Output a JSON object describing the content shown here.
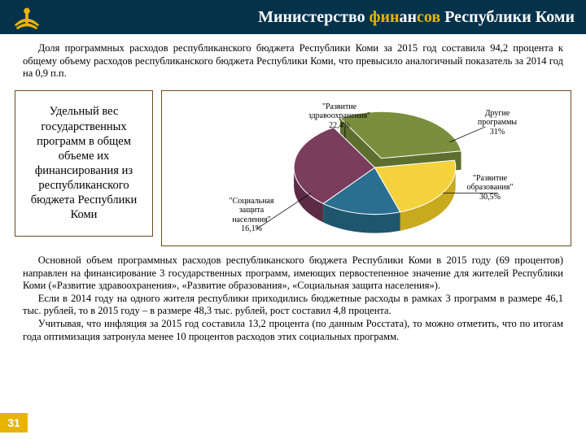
{
  "header": {
    "title_prefix": "Министерство ",
    "title_accent": "фин",
    "title_mid": "ан",
    "title_accent2": "сов",
    "title_suffix": " Республики Коми",
    "bar_bg": "#05324b",
    "logo_fill": "#e8b400"
  },
  "intro": "Доля программных расходов республиканского бюджета Республики Коми за 2015 год составила 94,2 процента к общему объему расходов республиканского бюджета Республики Коми, что превысило аналогичный показатель за 2014 год на 0,9 п.п.",
  "sidebox": "Удельный вес государственных программ в общем объеме их финансирования из республиканского бюджета Республики Коми",
  "chart": {
    "type": "pie-3d",
    "bg": "#ffffff",
    "border": "#6b4a1e",
    "label_fontsize": 10,
    "slices": [
      {
        "label": "\"Социальная защита населения\"",
        "pct": "16,1%",
        "value": 16.1,
        "fill": "#2a6f8f",
        "side": "#1f566e"
      },
      {
        "label": "\"Развитие здравоохранения\"",
        "pct": "22,4%",
        "value": 22.4,
        "fill": "#f3d23c",
        "side": "#c9a91e"
      },
      {
        "label": "Другие программы",
        "pct": "31%",
        "value": 31.0,
        "fill": "#7a8f3e",
        "side": "#5e6e2e"
      },
      {
        "label": "\"Развитие образования\"",
        "pct": "30,5%",
        "value": 30.5,
        "fill": "#7a3d5e",
        "side": "#5c2c46"
      }
    ]
  },
  "outro": {
    "p1": "Основной объем программных расходов республиканского бюджета Республики Коми в 2015 году (69 процентов) направлен на финансирование 3 государственных программ, имеющих первостепенное значение для жителей Республики Коми («Развитие здравоохранения», «Развитие образования», «Социальная защита населения»).",
    "p2": "Если в 2014 году на одного жителя республики приходились бюджетные расходы в рамках 3 программ в размере 46,1 тыс. рублей, то в 2015 году – в размере 48,3 тыс. рублей, рост составил 4,8 процента.",
    "p3": "Учитывая, что инфляция за 2015 год составила 13,2 процента (по данным Росстата), то можно отметить, что по итогам года оптимизация затронула менее 10 процентов расходов этих социальных программ."
  },
  "page_number": "31"
}
